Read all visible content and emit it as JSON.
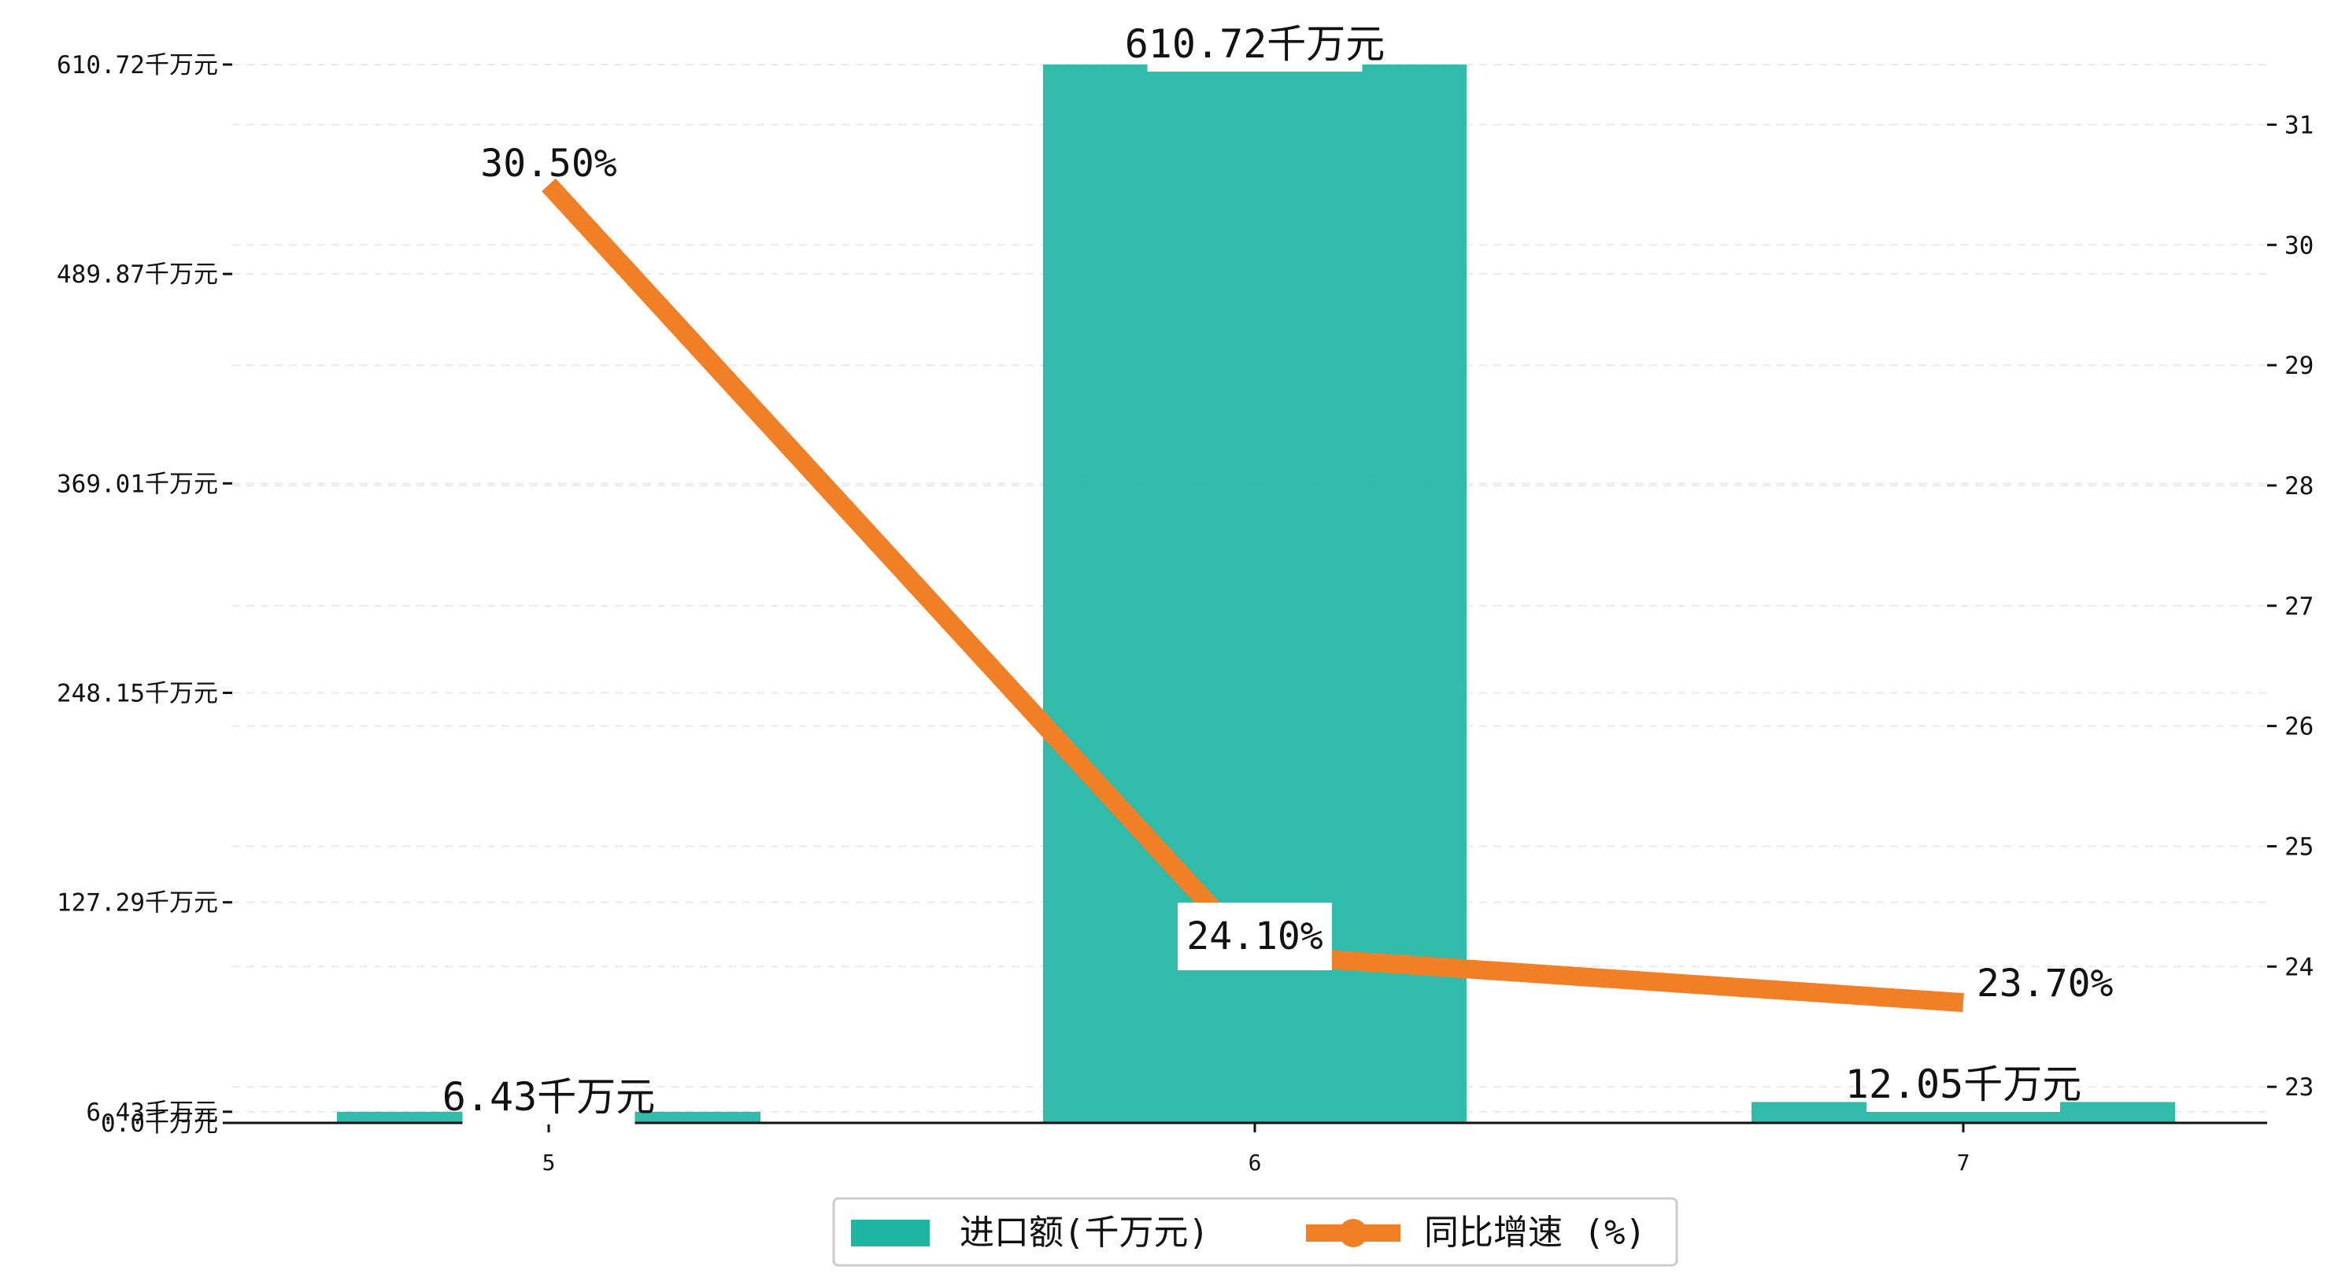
{
  "chart_data": {
    "type": "bar",
    "categories": [
      "5",
      "6",
      "7"
    ],
    "series": [
      {
        "name": "进口额(千万元)",
        "type": "bar",
        "axis": "left",
        "values": [
          6.43,
          610.72,
          12.05
        ],
        "labels": [
          "6.43千万元",
          "610.72千万元",
          "12.05千万元"
        ]
      },
      {
        "name": "同比增速 (%)",
        "type": "line",
        "axis": "right",
        "values": [
          30.5,
          24.1,
          23.7
        ],
        "labels": [
          "30.50%",
          "24.10%",
          "23.70%"
        ]
      }
    ],
    "y_left": {
      "ylim": [
        0,
        610.72
      ],
      "ticks": [
        0,
        6.43,
        127.29,
        248.15,
        369.01,
        489.87,
        610.72
      ],
      "tick_labels": [
        "0.0千万元",
        "6.43千万元",
        "127.29千万元",
        "248.15千万元",
        "369.01千万元",
        "489.87千万元",
        "610.72千万元"
      ]
    },
    "y_right": {
      "ylim": [
        22.7,
        31.5
      ],
      "ticks": [
        23,
        24,
        25,
        26,
        27,
        28,
        29,
        30,
        31
      ],
      "tick_labels": [
        "23",
        "24",
        "25",
        "26",
        "27",
        "28",
        "29",
        "30",
        "31"
      ]
    },
    "grid": true,
    "legend": "bottom-center",
    "colors": {
      "bar": "#1fb5a3",
      "line": "#f07f26"
    }
  }
}
